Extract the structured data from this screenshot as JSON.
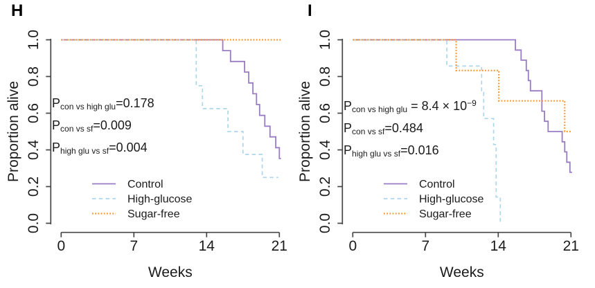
{
  "chart_data": [
    {
      "type": "line",
      "panel_label": "H",
      "step": true,
      "title": "",
      "xlabel": "Weeks",
      "ylabel": "Proportion alive",
      "xlim": [
        0,
        21
      ],
      "ylim": [
        0.0,
        1.0
      ],
      "xticks": [
        "0",
        "7",
        "14",
        "21"
      ],
      "yticks": [
        "0.0",
        "0.2",
        "0.4",
        "0.6",
        "0.8",
        "1.0"
      ],
      "grid": false,
      "legend_position": "inside-lower-left",
      "series": [
        {
          "name": "Control",
          "color": "#9A7CC4",
          "line_style": "solid",
          "points": [
            [
              0,
              1
            ],
            [
              15.55,
              1
            ],
            [
              15.55,
              0.941
            ],
            [
              16.3,
              0.941
            ],
            [
              16.3,
              0.882
            ],
            [
              17.65,
              0.882
            ],
            [
              17.65,
              0.824
            ],
            [
              18.05,
              0.824
            ],
            [
              18.05,
              0.765
            ],
            [
              18.45,
              0.765
            ],
            [
              18.45,
              0.706
            ],
            [
              18.8,
              0.706
            ],
            [
              18.8,
              0.647
            ],
            [
              19.1,
              0.647
            ],
            [
              19.1,
              0.588
            ],
            [
              19.6,
              0.588
            ],
            [
              19.6,
              0.529
            ],
            [
              20.1,
              0.529
            ],
            [
              20.1,
              0.471
            ],
            [
              20.65,
              0.471
            ],
            [
              20.65,
              0.412
            ],
            [
              21,
              0.412
            ],
            [
              21,
              0.353
            ],
            [
              21.15,
              0.353
            ]
          ]
        },
        {
          "name": "High-glucose",
          "color": "#ACD6EC",
          "line_style": "dashed",
          "points": [
            [
              0,
              1
            ],
            [
              13,
              1
            ],
            [
              13,
              0.75
            ],
            [
              13.6,
              0.75
            ],
            [
              13.6,
              0.625
            ],
            [
              16.05,
              0.625
            ],
            [
              16.05,
              0.5
            ],
            [
              17.5,
              0.5
            ],
            [
              17.5,
              0.375
            ],
            [
              19.35,
              0.375
            ],
            [
              19.35,
              0.25
            ],
            [
              20.9,
              0.25
            ]
          ]
        },
        {
          "name": "Sugar-free",
          "color": "#FF9326",
          "line_style": "dotted",
          "points": [
            [
              0,
              1
            ],
            [
              21.15,
              1
            ]
          ]
        }
      ],
      "p_values": [
        {
          "base": "P",
          "sub": "con vs high glu",
          "value": "=0.178",
          "sup": ""
        },
        {
          "base": "P",
          "sub": "con vs sf",
          "value": "=0.009",
          "sup": ""
        },
        {
          "base": "P",
          "sub": "high glu vs sf",
          "value": "=0.004",
          "sup": ""
        }
      ]
    },
    {
      "type": "line",
      "panel_label": "I",
      "step": true,
      "title": "",
      "xlabel": "Weeks",
      "ylabel": "Proportion alive",
      "xlim": [
        0,
        21
      ],
      "ylim": [
        0.0,
        1.0
      ],
      "xticks": [
        "0",
        "7",
        "14",
        "21"
      ],
      "yticks": [
        "0.0",
        "0.2",
        "0.4",
        "0.6",
        "0.8",
        "1.0"
      ],
      "grid": false,
      "legend_position": "inside-lower-left",
      "series": [
        {
          "name": "Control",
          "color": "#9A7CC4",
          "line_style": "solid",
          "points": [
            [
              0,
              1
            ],
            [
              15.65,
              1
            ],
            [
              15.65,
              0.944
            ],
            [
              16.2,
              0.944
            ],
            [
              16.2,
              0.889
            ],
            [
              16.7,
              0.889
            ],
            [
              16.7,
              0.833
            ],
            [
              16.9,
              0.833
            ],
            [
              16.9,
              0.778
            ],
            [
              17.1,
              0.778
            ],
            [
              17.1,
              0.722
            ],
            [
              18.2,
              0.722
            ],
            [
              18.2,
              0.611
            ],
            [
              18.45,
              0.611
            ],
            [
              18.45,
              0.556
            ],
            [
              18.8,
              0.556
            ],
            [
              18.8,
              0.5
            ],
            [
              20.15,
              0.5
            ],
            [
              20.15,
              0.444
            ],
            [
              20.4,
              0.444
            ],
            [
              20.4,
              0.389
            ],
            [
              20.6,
              0.389
            ],
            [
              20.6,
              0.333
            ],
            [
              20.9,
              0.333
            ],
            [
              20.9,
              0.278
            ],
            [
              21.1,
              0.278
            ]
          ]
        },
        {
          "name": "High-glucose",
          "color": "#ACD6EC",
          "line_style": "dashed",
          "points": [
            [
              0,
              1
            ],
            [
              9.05,
              1
            ],
            [
              9.05,
              0.857
            ],
            [
              12.4,
              0.857
            ],
            [
              12.4,
              0.714
            ],
            [
              12.6,
              0.714
            ],
            [
              12.6,
              0.571
            ],
            [
              13.55,
              0.571
            ],
            [
              13.55,
              0.429
            ],
            [
              13.8,
              0.429
            ],
            [
              13.8,
              0.143
            ],
            [
              14.2,
              0.143
            ],
            [
              14.2,
              0
            ]
          ]
        },
        {
          "name": "Sugar-free",
          "color": "#FF9326",
          "line_style": "dotted",
          "points": [
            [
              0,
              1
            ],
            [
              9.95,
              1
            ],
            [
              9.95,
              0.833
            ],
            [
              14.05,
              0.833
            ],
            [
              14.05,
              0.667
            ],
            [
              20.4,
              0.667
            ],
            [
              20.4,
              0.5
            ],
            [
              21.1,
              0.5
            ]
          ]
        }
      ],
      "p_values": [
        {
          "base": "P",
          "sub": "con vs high glu",
          "value": " = 8.4 × 10",
          "sup": "−9"
        },
        {
          "base": "P",
          "sub": "con vs sf",
          "value": "=0.484",
          "sup": ""
        },
        {
          "base": "P",
          "sub": "high glu vs sf",
          "value": "=0.016",
          "sup": ""
        }
      ]
    }
  ]
}
